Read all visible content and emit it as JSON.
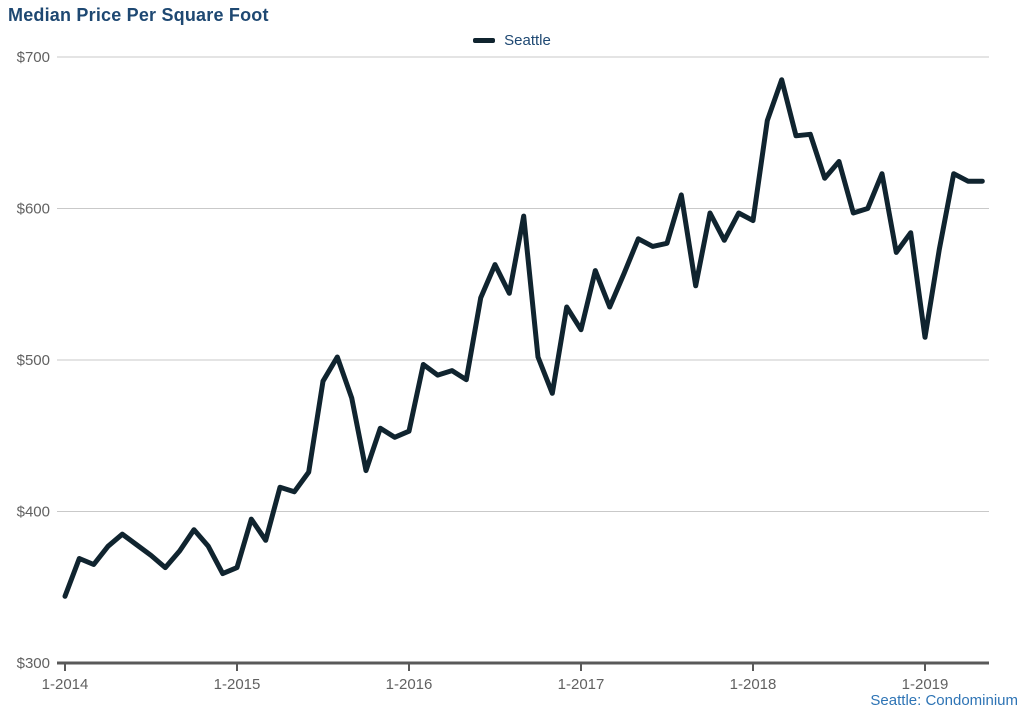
{
  "chart_data": {
    "type": "line",
    "title": "Median Price Per Square Foot",
    "footer": "Seattle: Condominium",
    "legend_position": "top-center",
    "grid": "horizontal-only",
    "x_tick_labels": [
      "1-2014",
      "1-2015",
      "1-2016",
      "1-2017",
      "1-2018",
      "1-2019"
    ],
    "x_tick_month_indices": [
      0,
      12,
      24,
      36,
      48,
      60
    ],
    "x_period": "monthly from 1-2014 through 5-2019",
    "y_tick_labels": [
      "$300",
      "$400",
      "$500",
      "$600",
      "$700"
    ],
    "y_tick_values": [
      300,
      400,
      500,
      600,
      700
    ],
    "ylim": [
      300,
      700
    ],
    "series": [
      {
        "name": "Seattle",
        "color": "#10242f",
        "values": [
          344,
          369,
          365,
          377,
          385,
          378,
          371,
          363,
          374,
          388,
          377,
          359,
          363,
          395,
          381,
          416,
          413,
          426,
          486,
          502,
          475,
          427,
          455,
          449,
          453,
          497,
          490,
          493,
          487,
          541,
          563,
          544,
          595,
          502,
          478,
          535,
          520,
          559,
          535,
          557,
          580,
          575,
          577,
          609,
          549,
          597,
          579,
          597,
          592,
          658,
          685,
          648,
          649,
          620,
          631,
          597,
          600,
          623,
          571,
          584,
          515,
          573,
          623,
          618,
          618
        ]
      }
    ],
    "colors": {
      "title_text": "#1e4872",
      "legend_text": "#1e4872",
      "footer_text": "#2e74b5",
      "axis_line": "#595959",
      "axis_text": "#616161",
      "gridline": "#c9c9c9",
      "background": "#ffffff"
    }
  }
}
